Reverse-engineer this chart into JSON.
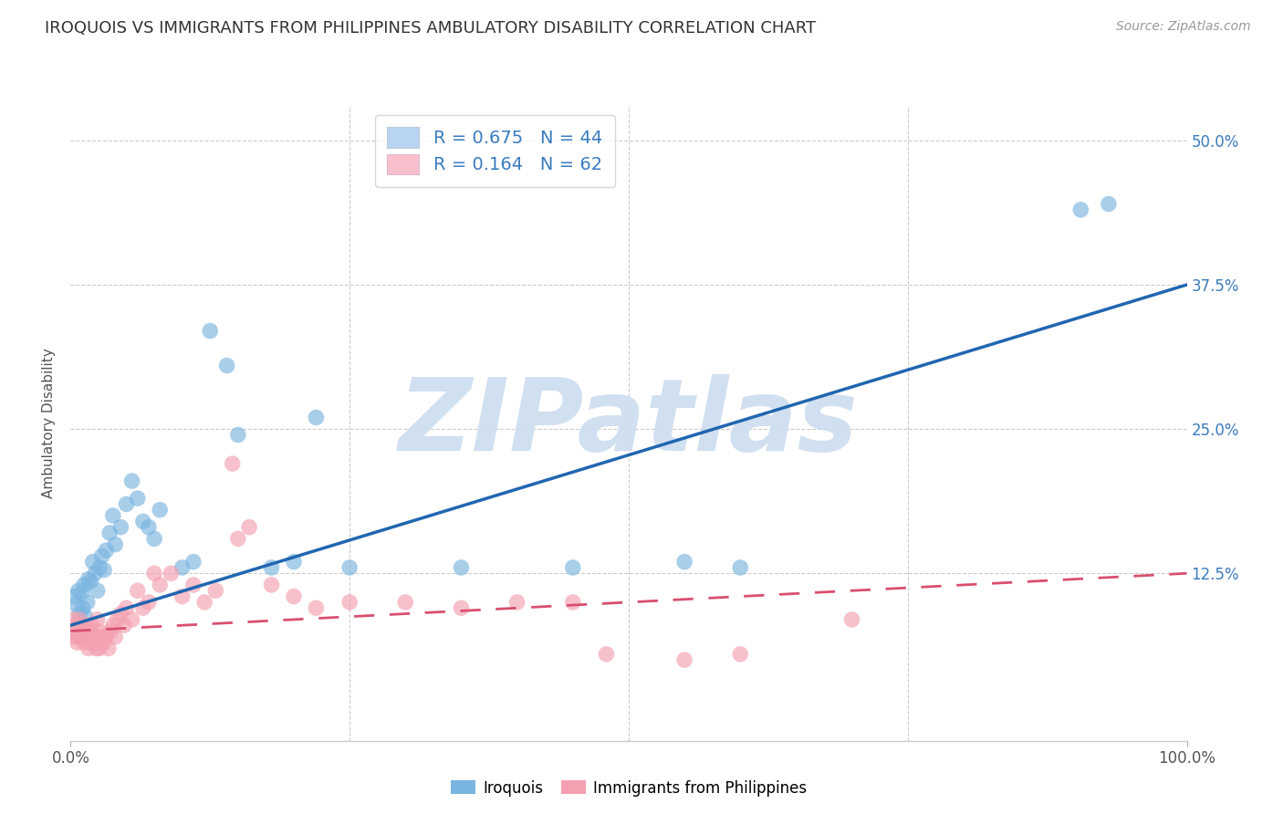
{
  "title": "IROQUOIS VS IMMIGRANTS FROM PHILIPPINES AMBULATORY DISABILITY CORRELATION CHART",
  "source": "Source: ZipAtlas.com",
  "ylabel": "Ambulatory Disability",
  "yticks_labels": [
    "12.5%",
    "25.0%",
    "37.5%",
    "50.0%"
  ],
  "ytick_vals": [
    12.5,
    25.0,
    37.5,
    50.0
  ],
  "xlim": [
    0.0,
    100.0
  ],
  "ylim": [
    -2.0,
    53.0
  ],
  "iroquois_color": "#7ab4e0",
  "philippines_color": "#f4a0b0",
  "iroquois_scatter": [
    [
      0.3,
      10.5
    ],
    [
      0.5,
      9.8
    ],
    [
      0.7,
      11.0
    ],
    [
      0.8,
      9.0
    ],
    [
      1.0,
      10.8
    ],
    [
      1.1,
      9.5
    ],
    [
      1.2,
      11.5
    ],
    [
      1.3,
      8.8
    ],
    [
      1.5,
      10.0
    ],
    [
      1.6,
      12.0
    ],
    [
      1.8,
      11.8
    ],
    [
      2.0,
      13.5
    ],
    [
      2.2,
      12.5
    ],
    [
      2.4,
      11.0
    ],
    [
      2.6,
      13.0
    ],
    [
      2.8,
      14.0
    ],
    [
      3.0,
      12.8
    ],
    [
      3.2,
      14.5
    ],
    [
      3.5,
      16.0
    ],
    [
      3.8,
      17.5
    ],
    [
      4.0,
      15.0
    ],
    [
      4.5,
      16.5
    ],
    [
      5.0,
      18.5
    ],
    [
      5.5,
      20.5
    ],
    [
      6.0,
      19.0
    ],
    [
      6.5,
      17.0
    ],
    [
      7.0,
      16.5
    ],
    [
      7.5,
      15.5
    ],
    [
      8.0,
      18.0
    ],
    [
      10.0,
      13.0
    ],
    [
      11.0,
      13.5
    ],
    [
      12.5,
      33.5
    ],
    [
      14.0,
      30.5
    ],
    [
      15.0,
      24.5
    ],
    [
      18.0,
      13.0
    ],
    [
      20.0,
      13.5
    ],
    [
      22.0,
      26.0
    ],
    [
      25.0,
      13.0
    ],
    [
      35.0,
      13.0
    ],
    [
      45.0,
      13.0
    ],
    [
      55.0,
      13.5
    ],
    [
      60.0,
      13.0
    ],
    [
      90.5,
      44.0
    ],
    [
      93.0,
      44.5
    ]
  ],
  "philippines_scatter": [
    [
      0.2,
      8.5
    ],
    [
      0.3,
      7.0
    ],
    [
      0.4,
      7.5
    ],
    [
      0.5,
      8.0
    ],
    [
      0.6,
      6.5
    ],
    [
      0.7,
      7.0
    ],
    [
      0.8,
      8.5
    ],
    [
      0.9,
      7.5
    ],
    [
      1.0,
      8.0
    ],
    [
      1.1,
      7.0
    ],
    [
      1.2,
      6.5
    ],
    [
      1.3,
      7.5
    ],
    [
      1.4,
      8.0
    ],
    [
      1.5,
      7.0
    ],
    [
      1.6,
      6.0
    ],
    [
      1.7,
      7.5
    ],
    [
      1.8,
      6.5
    ],
    [
      1.9,
      8.0
    ],
    [
      2.0,
      7.0
    ],
    [
      2.1,
      6.5
    ],
    [
      2.2,
      7.0
    ],
    [
      2.3,
      6.0
    ],
    [
      2.4,
      8.5
    ],
    [
      2.5,
      7.5
    ],
    [
      2.6,
      6.0
    ],
    [
      2.8,
      7.0
    ],
    [
      3.0,
      6.5
    ],
    [
      3.2,
      7.0
    ],
    [
      3.4,
      6.0
    ],
    [
      3.6,
      7.5
    ],
    [
      3.8,
      8.0
    ],
    [
      4.0,
      7.0
    ],
    [
      4.2,
      8.5
    ],
    [
      4.5,
      9.0
    ],
    [
      4.8,
      8.0
    ],
    [
      5.0,
      9.5
    ],
    [
      5.5,
      8.5
    ],
    [
      6.0,
      11.0
    ],
    [
      6.5,
      9.5
    ],
    [
      7.0,
      10.0
    ],
    [
      7.5,
      12.5
    ],
    [
      8.0,
      11.5
    ],
    [
      9.0,
      12.5
    ],
    [
      10.0,
      10.5
    ],
    [
      11.0,
      11.5
    ],
    [
      12.0,
      10.0
    ],
    [
      13.0,
      11.0
    ],
    [
      14.5,
      22.0
    ],
    [
      15.0,
      15.5
    ],
    [
      16.0,
      16.5
    ],
    [
      18.0,
      11.5
    ],
    [
      20.0,
      10.5
    ],
    [
      22.0,
      9.5
    ],
    [
      25.0,
      10.0
    ],
    [
      30.0,
      10.0
    ],
    [
      35.0,
      9.5
    ],
    [
      40.0,
      10.0
    ],
    [
      45.0,
      10.0
    ],
    [
      48.0,
      5.5
    ],
    [
      55.0,
      5.0
    ],
    [
      60.0,
      5.5
    ],
    [
      70.0,
      8.5
    ]
  ],
  "iroquois_line": {
    "x": [
      0.0,
      100.0
    ],
    "y": [
      8.0,
      37.5
    ]
  },
  "philippines_line": {
    "x": [
      0.0,
      100.0
    ],
    "y": [
      7.5,
      12.5
    ]
  },
  "iroquois_line_color": "#2166b0",
  "philippines_line_color": "#d94f6e",
  "watermark_text": "ZIPatlas",
  "watermark_color": "#ccddf0",
  "background_color": "#ffffff",
  "grid_color": "#cccccc",
  "title_fontsize": 13,
  "source_fontsize": 10,
  "ytick_color": "#3a7bbf",
  "xtick_color": "#555555",
  "ylabel_color": "#555555",
  "legend_box_blue": "#b8d4f0",
  "legend_box_pink": "#f8c0cc",
  "legend_text_color": "#3a7bbf",
  "legend_label_1": "R = 0.675   N = 44",
  "legend_label_2": "R = 0.164   N = 62",
  "bottom_legend_label_1": "Iroquois",
  "bottom_legend_label_2": "Immigrants from Philippines"
}
